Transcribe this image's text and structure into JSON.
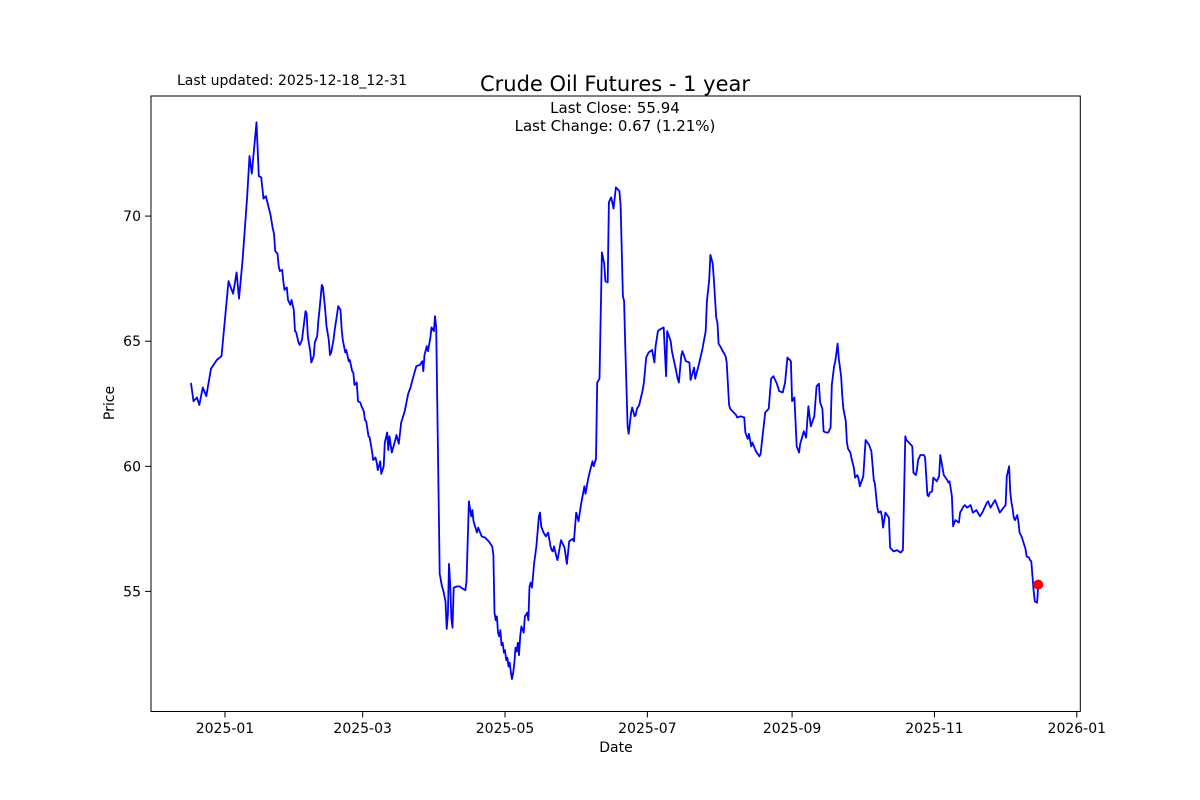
{
  "figure": {
    "title": "Crude Oil Futures - 1 year",
    "annotation": "Last updated: 2025-12-18_12-31",
    "last_close_label": "Last Close: 55.94",
    "last_change_label": "Last Change: 0.67 (1.21%)"
  },
  "chart_data": {
    "type": "line",
    "title": "Crude Oil Futures - 1 year",
    "xlabel": "Date",
    "ylabel": "Price",
    "legend": "none",
    "grid": false,
    "line_color": "#0000ff",
    "marker_color": "#ff0000",
    "last_close": 55.94,
    "last_change": 0.67,
    "last_change_pct": "1.21%",
    "x_unit": "days_since_2025-01-01",
    "xlim_days": [
      -31.7,
      366.5
    ],
    "ylim": [
      50.2,
      74.8
    ],
    "x_ticks": [
      {
        "label": "2025-01",
        "day": 0
      },
      {
        "label": "2025-03",
        "day": 59
      },
      {
        "label": "2025-05",
        "day": 120
      },
      {
        "label": "2025-07",
        "day": 181
      },
      {
        "label": "2025-09",
        "day": 243
      },
      {
        "label": "2025-11",
        "day": 304
      },
      {
        "label": "2026-01",
        "day": 365
      }
    ],
    "y_ticks": [
      55,
      60,
      65,
      70
    ],
    "last_point": {
      "day": 348.5,
      "price": 55.27
    },
    "points": [
      [
        -14.5,
        63.3
      ],
      [
        -13.5,
        62.6
      ],
      [
        -12,
        62.75
      ],
      [
        -11,
        62.45
      ],
      [
        -9.5,
        63.15
      ],
      [
        -8,
        62.8
      ],
      [
        -6,
        63.9
      ],
      [
        -3.5,
        64.25
      ],
      [
        -1.5,
        64.4
      ],
      [
        1.5,
        67.4
      ],
      [
        3.5,
        66.9
      ],
      [
        5,
        67.75
      ],
      [
        6,
        66.7
      ],
      [
        7.5,
        68.2
      ],
      [
        9.5,
        70.8
      ],
      [
        10.5,
        72.4
      ],
      [
        11.5,
        71.7
      ],
      [
        13.5,
        73.75
      ],
      [
        14.5,
        71.6
      ],
      [
        15.5,
        71.55
      ],
      [
        16.5,
        70.7
      ],
      [
        17.5,
        70.8
      ],
      [
        19.5,
        70.05
      ],
      [
        20.5,
        69.5
      ],
      [
        21,
        69.3
      ],
      [
        21.5,
        68.6
      ],
      [
        22.5,
        68.5
      ],
      [
        23,
        68.0
      ],
      [
        23.5,
        67.8
      ],
      [
        24.5,
        67.85
      ],
      [
        25,
        67.4
      ],
      [
        25.5,
        67.05
      ],
      [
        26.5,
        67.15
      ],
      [
        27,
        66.65
      ],
      [
        28,
        66.45
      ],
      [
        28.5,
        66.65
      ],
      [
        29.5,
        66.25
      ],
      [
        30,
        65.4
      ],
      [
        30.5,
        65.35
      ],
      [
        31.5,
        64.95
      ],
      [
        32,
        64.85
      ],
      [
        33,
        65.05
      ],
      [
        33.5,
        65.45
      ],
      [
        34.5,
        66.2
      ],
      [
        35,
        66.1
      ],
      [
        35.5,
        65.2
      ],
      [
        36.5,
        64.6
      ],
      [
        37,
        64.15
      ],
      [
        38,
        64.4
      ],
      [
        38.5,
        64.95
      ],
      [
        39.5,
        65.2
      ],
      [
        40,
        65.8
      ],
      [
        40.5,
        66.25
      ],
      [
        41.5,
        67.25
      ],
      [
        42,
        67.15
      ],
      [
        43,
        66.2
      ],
      [
        43.5,
        65.6
      ],
      [
        44.5,
        65.05
      ],
      [
        45,
        64.45
      ],
      [
        45.5,
        64.55
      ],
      [
        46.5,
        65.05
      ],
      [
        47,
        65.45
      ],
      [
        48,
        66.05
      ],
      [
        48.5,
        66.4
      ],
      [
        49.5,
        66.25
      ],
      [
        50,
        65.45
      ],
      [
        50.5,
        65.05
      ],
      [
        51.5,
        64.55
      ],
      [
        52,
        64.65
      ],
      [
        53,
        64.2
      ],
      [
        53.5,
        64.25
      ],
      [
        54.5,
        63.8
      ],
      [
        55,
        63.75
      ],
      [
        55.5,
        63.25
      ],
      [
        56.5,
        63.35
      ],
      [
        57,
        62.6
      ],
      [
        58,
        62.55
      ],
      [
        58.5,
        62.4
      ],
      [
        59.5,
        62.2
      ],
      [
        60,
        61.85
      ],
      [
        60.5,
        61.8
      ],
      [
        61.5,
        61.2
      ],
      [
        62,
        61.15
      ],
      [
        63,
        60.6
      ],
      [
        63.5,
        60.25
      ],
      [
        64.5,
        60.35
      ],
      [
        65,
        60.15
      ],
      [
        65.5,
        59.85
      ],
      [
        66.5,
        60.2
      ],
      [
        67,
        59.7
      ],
      [
        68,
        60.0
      ],
      [
        68.5,
        60.95
      ],
      [
        69.5,
        61.35
      ],
      [
        70,
        60.65
      ],
      [
        70.5,
        61.2
      ],
      [
        71.5,
        60.55
      ],
      [
        73,
        61.05
      ],
      [
        73.5,
        61.25
      ],
      [
        74.5,
        60.9
      ],
      [
        75.5,
        61.75
      ],
      [
        77,
        62.2
      ],
      [
        78.5,
        62.9
      ],
      [
        79.5,
        63.15
      ],
      [
        80.5,
        63.5
      ],
      [
        82,
        64.0
      ],
      [
        83.5,
        64.05
      ],
      [
        84.5,
        64.2
      ],
      [
        85,
        63.8
      ],
      [
        85.5,
        64.45
      ],
      [
        86.5,
        64.8
      ],
      [
        87,
        64.6
      ],
      [
        88,
        65.15
      ],
      [
        88.5,
        65.55
      ],
      [
        89.5,
        65.4
      ],
      [
        90,
        66.0
      ],
      [
        90.5,
        65.55
      ],
      [
        92,
        55.7
      ],
      [
        93,
        55.2
      ],
      [
        93.5,
        55.05
      ],
      [
        94.5,
        54.6
      ],
      [
        95,
        53.5
      ],
      [
        95.5,
        54.1
      ],
      [
        96,
        56.1
      ],
      [
        96.5,
        55.25
      ],
      [
        97,
        53.9
      ],
      [
        97.5,
        53.55
      ],
      [
        98,
        55.15
      ],
      [
        99.5,
        55.2
      ],
      [
        100.5,
        55.2
      ],
      [
        102,
        55.1
      ],
      [
        103,
        55.05
      ],
      [
        103.5,
        55.4
      ],
      [
        104.5,
        58.6
      ],
      [
        105.5,
        58.0
      ],
      [
        106,
        58.25
      ],
      [
        106.5,
        57.8
      ],
      [
        108,
        57.35
      ],
      [
        108.5,
        57.55
      ],
      [
        110,
        57.2
      ],
      [
        111.5,
        57.15
      ],
      [
        113,
        57.0
      ],
      [
        114.5,
        56.8
      ],
      [
        115,
        56.45
      ],
      [
        115.5,
        54.15
      ],
      [
        116,
        53.85
      ],
      [
        116.5,
        54.0
      ],
      [
        117,
        53.35
      ],
      [
        117.5,
        53.2
      ],
      [
        118,
        53.45
      ],
      [
        118.5,
        52.85
      ],
      [
        119,
        52.95
      ],
      [
        119.5,
        52.55
      ],
      [
        120,
        52.65
      ],
      [
        120.5,
        52.25
      ],
      [
        121,
        52.35
      ],
      [
        121.5,
        52.0
      ],
      [
        122,
        52.15
      ],
      [
        122.5,
        51.75
      ],
      [
        123,
        51.5
      ],
      [
        123.5,
        51.75
      ],
      [
        124,
        52.15
      ],
      [
        124.5,
        52.75
      ],
      [
        125,
        52.6
      ],
      [
        125.5,
        52.95
      ],
      [
        126,
        52.45
      ],
      [
        126.5,
        53.2
      ],
      [
        127,
        53.6
      ],
      [
        128,
        53.35
      ],
      [
        128.5,
        54.0
      ],
      [
        129.5,
        54.15
      ],
      [
        130,
        53.85
      ],
      [
        130.5,
        55.2
      ],
      [
        131,
        55.35
      ],
      [
        131.5,
        55.15
      ],
      [
        132,
        55.6
      ],
      [
        132.5,
        56.15
      ],
      [
        133,
        56.5
      ],
      [
        133.5,
        56.85
      ],
      [
        134.5,
        58.0
      ],
      [
        135,
        58.15
      ],
      [
        135.5,
        57.6
      ],
      [
        136.5,
        57.35
      ],
      [
        137.5,
        57.2
      ],
      [
        138.5,
        57.35
      ],
      [
        139.5,
        56.8
      ],
      [
        140,
        56.65
      ],
      [
        140.5,
        56.6
      ],
      [
        141,
        56.8
      ],
      [
        142,
        56.4
      ],
      [
        142.5,
        56.25
      ],
      [
        143.5,
        56.8
      ],
      [
        144,
        57.05
      ],
      [
        145,
        56.85
      ],
      [
        145.5,
        56.75
      ],
      [
        146.5,
        56.1
      ],
      [
        147.5,
        57.0
      ],
      [
        149,
        57.1
      ],
      [
        149.5,
        57.0
      ],
      [
        150.5,
        58.15
      ],
      [
        151.5,
        57.8
      ],
      [
        152.5,
        58.45
      ],
      [
        154,
        59.2
      ],
      [
        154.5,
        58.9
      ],
      [
        155.5,
        59.45
      ],
      [
        156.5,
        59.85
      ],
      [
        157.5,
        60.2
      ],
      [
        158,
        60.0
      ],
      [
        159,
        60.3
      ],
      [
        159.5,
        63.35
      ],
      [
        160.5,
        63.5
      ],
      [
        161.5,
        68.55
      ],
      [
        162.5,
        68.1
      ],
      [
        163,
        67.4
      ],
      [
        164,
        67.35
      ],
      [
        164.5,
        70.55
      ],
      [
        165.5,
        70.75
      ],
      [
        166.5,
        70.3
      ],
      [
        167.5,
        71.15
      ],
      [
        169,
        71.0
      ],
      [
        169.5,
        70.45
      ],
      [
        170.5,
        66.8
      ],
      [
        171,
        66.6
      ],
      [
        171.5,
        64.9
      ],
      [
        172.5,
        61.6
      ],
      [
        173,
        61.3
      ],
      [
        174,
        62.15
      ],
      [
        174.5,
        62.35
      ],
      [
        175.5,
        62.0
      ],
      [
        176,
        62.05
      ],
      [
        176.5,
        62.3
      ],
      [
        177.5,
        62.45
      ],
      [
        179,
        63.05
      ],
      [
        179.5,
        63.35
      ],
      [
        180.5,
        64.35
      ],
      [
        181.5,
        64.55
      ],
      [
        183,
        64.65
      ],
      [
        184,
        64.15
      ],
      [
        184.5,
        64.8
      ],
      [
        185.5,
        65.4
      ],
      [
        186,
        65.45
      ],
      [
        188,
        65.55
      ],
      [
        189,
        63.6
      ],
      [
        189.5,
        65.4
      ],
      [
        191,
        65.0
      ],
      [
        191.5,
        64.6
      ],
      [
        193,
        63.95
      ],
      [
        194,
        63.5
      ],
      [
        194.5,
        63.35
      ],
      [
        195.5,
        64.4
      ],
      [
        196,
        64.6
      ],
      [
        197.5,
        64.2
      ],
      [
        199,
        64.15
      ],
      [
        199.5,
        63.45
      ],
      [
        201,
        63.95
      ],
      [
        201.5,
        63.5
      ],
      [
        203,
        64.05
      ],
      [
        204.5,
        64.65
      ],
      [
        206,
        65.4
      ],
      [
        206.5,
        66.6
      ],
      [
        207.5,
        67.45
      ],
      [
        208,
        68.45
      ],
      [
        209,
        68.1
      ],
      [
        209.5,
        67.45
      ],
      [
        210.5,
        65.95
      ],
      [
        211,
        65.75
      ],
      [
        211.5,
        64.9
      ],
      [
        212.5,
        64.75
      ],
      [
        213,
        64.65
      ],
      [
        214.5,
        64.4
      ],
      [
        215,
        64.15
      ],
      [
        216,
        62.45
      ],
      [
        216.5,
        62.3
      ],
      [
        218,
        62.15
      ],
      [
        219,
        62.05
      ],
      [
        219.5,
        61.95
      ],
      [
        221,
        62.0
      ],
      [
        222.5,
        61.95
      ],
      [
        223,
        61.35
      ],
      [
        224,
        61.1
      ],
      [
        224.5,
        61.3
      ],
      [
        225.5,
        60.8
      ],
      [
        226,
        60.95
      ],
      [
        227.5,
        60.6
      ],
      [
        229,
        60.4
      ],
      [
        229.5,
        60.5
      ],
      [
        231.5,
        62.15
      ],
      [
        233,
        62.3
      ],
      [
        234,
        63.5
      ],
      [
        235,
        63.6
      ],
      [
        236.5,
        63.3
      ],
      [
        237.5,
        63.0
      ],
      [
        239,
        62.95
      ],
      [
        240,
        63.35
      ],
      [
        241,
        64.35
      ],
      [
        242.5,
        64.2
      ],
      [
        243,
        62.6
      ],
      [
        244,
        62.75
      ],
      [
        245,
        60.8
      ],
      [
        246,
        60.55
      ],
      [
        246.5,
        60.9
      ],
      [
        248,
        61.4
      ],
      [
        249,
        61.15
      ],
      [
        250,
        62.4
      ],
      [
        251,
        61.6
      ],
      [
        252.5,
        62.0
      ],
      [
        253.5,
        63.2
      ],
      [
        254.5,
        63.3
      ],
      [
        255,
        62.55
      ],
      [
        256,
        62.3
      ],
      [
        256.5,
        61.4
      ],
      [
        257.5,
        61.35
      ],
      [
        258.5,
        61.35
      ],
      [
        259.5,
        61.55
      ],
      [
        260,
        63.25
      ],
      [
        261,
        64.0
      ],
      [
        261.5,
        64.2
      ],
      [
        262.5,
        64.9
      ],
      [
        263,
        64.3
      ],
      [
        264,
        63.6
      ],
      [
        264.5,
        62.8
      ],
      [
        265,
        62.3
      ],
      [
        266,
        61.8
      ],
      [
        266.5,
        60.95
      ],
      [
        267,
        60.7
      ],
      [
        268,
        60.55
      ],
      [
        268.5,
        60.3
      ],
      [
        269.5,
        59.95
      ],
      [
        270,
        59.55
      ],
      [
        271,
        59.65
      ],
      [
        271.5,
        59.5
      ],
      [
        272,
        59.2
      ],
      [
        273.5,
        59.6
      ],
      [
        274.5,
        61.05
      ],
      [
        276,
        60.85
      ],
      [
        277,
        60.6
      ],
      [
        278,
        59.45
      ],
      [
        278.5,
        59.3
      ],
      [
        279.5,
        58.35
      ],
      [
        280,
        58.15
      ],
      [
        281,
        58.2
      ],
      [
        281.5,
        58.0
      ],
      [
        282,
        57.55
      ],
      [
        283,
        58.15
      ],
      [
        284.5,
        57.95
      ],
      [
        285,
        56.75
      ],
      [
        286,
        56.65
      ],
      [
        286.5,
        56.6
      ],
      [
        288,
        56.65
      ],
      [
        289.5,
        56.55
      ],
      [
        290.5,
        56.65
      ],
      [
        291.5,
        61.2
      ],
      [
        292,
        61.05
      ],
      [
        293,
        60.95
      ],
      [
        294.5,
        60.8
      ],
      [
        295,
        59.75
      ],
      [
        296,
        59.65
      ],
      [
        296.5,
        59.85
      ],
      [
        297,
        60.25
      ],
      [
        298,
        60.45
      ],
      [
        299.5,
        60.45
      ],
      [
        300,
        60.35
      ],
      [
        301,
        58.85
      ],
      [
        301.5,
        58.8
      ],
      [
        302,
        58.95
      ],
      [
        303,
        59.0
      ],
      [
        303.5,
        59.55
      ],
      [
        305,
        59.4
      ],
      [
        306,
        59.6
      ],
      [
        306.5,
        60.45
      ],
      [
        308,
        59.65
      ],
      [
        309.5,
        59.45
      ],
      [
        310,
        59.35
      ],
      [
        310.5,
        59.4
      ],
      [
        311.5,
        58.8
      ],
      [
        312,
        57.6
      ],
      [
        313,
        57.85
      ],
      [
        314.5,
        57.75
      ],
      [
        315,
        58.15
      ],
      [
        316.5,
        58.4
      ],
      [
        317,
        58.45
      ],
      [
        318,
        58.35
      ],
      [
        319.5,
        58.45
      ],
      [
        320.5,
        58.15
      ],
      [
        322,
        58.25
      ],
      [
        323.5,
        58.0
      ],
      [
        324.5,
        58.15
      ],
      [
        326.5,
        58.55
      ],
      [
        327,
        58.6
      ],
      [
        328,
        58.35
      ],
      [
        330,
        58.65
      ],
      [
        332,
        58.15
      ],
      [
        334.5,
        58.45
      ],
      [
        335,
        59.6
      ],
      [
        336,
        60.0
      ],
      [
        336.5,
        58.95
      ],
      [
        337,
        58.55
      ],
      [
        337.5,
        58.3
      ],
      [
        338,
        57.95
      ],
      [
        338.5,
        57.85
      ],
      [
        339.5,
        58.05
      ],
      [
        340,
        57.75
      ],
      [
        340.5,
        57.35
      ],
      [
        341.5,
        57.15
      ],
      [
        342,
        57.0
      ],
      [
        343,
        56.7
      ],
      [
        343.5,
        56.4
      ],
      [
        344.5,
        56.35
      ],
      [
        345,
        56.25
      ],
      [
        345.5,
        56.2
      ],
      [
        346,
        55.6
      ],
      [
        346.5,
        55.05
      ],
      [
        347,
        54.6
      ],
      [
        348,
        54.55
      ],
      [
        348.5,
        55.27
      ]
    ]
  }
}
